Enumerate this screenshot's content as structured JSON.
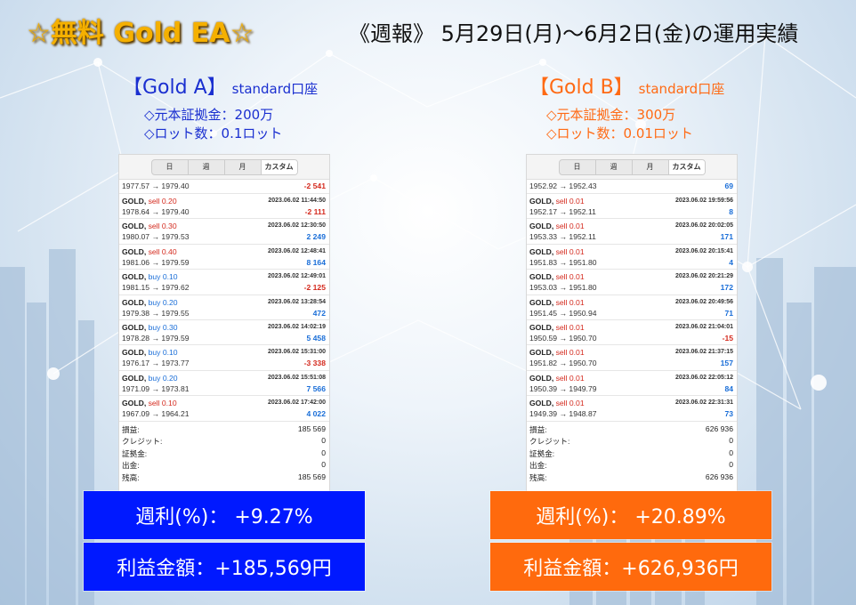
{
  "header": {
    "title": "☆無料 Gold EA☆",
    "subtitle": "《週報》 5月29日(月)～6月2日(金)の運用実績"
  },
  "colors": {
    "blue_accent": "#0019ff",
    "orange_accent": "#ff6a0d",
    "gold_title": "#f5b000",
    "profit": "#1a6ed8",
    "loss": "#d42a1e"
  },
  "tabs": [
    "日",
    "週",
    "月",
    "カスタム"
  ],
  "accounts": [
    {
      "name": "【Gold A】",
      "type": "standard口座",
      "info1": "◇元本証拠金：200万",
      "info2": "◇ロット数：0.1ロット",
      "first_row": {
        "price": "1977.57 → 1979.40",
        "profit": "-2 541",
        "sign": "neg"
      },
      "trades": [
        {
          "symbol": "GOLD, ",
          "side": "sell 0.20",
          "dir": "sell",
          "time": "2023.06.02 11:44:50",
          "price": "1978.64 → 1979.40",
          "profit": "-2 111",
          "sign": "neg"
        },
        {
          "symbol": "GOLD, ",
          "side": "sell 0.30",
          "dir": "sell",
          "time": "2023.06.02 12:30:50",
          "price": "1980.07 → 1979.53",
          "profit": "2 249",
          "sign": "pos"
        },
        {
          "symbol": "GOLD, ",
          "side": "sell 0.40",
          "dir": "sell",
          "time": "2023.06.02 12:48:41",
          "price": "1981.06 → 1979.59",
          "profit": "8 164",
          "sign": "pos"
        },
        {
          "symbol": "GOLD, ",
          "side": "buy 0.10",
          "dir": "buy",
          "time": "2023.06.02 12:49:01",
          "price": "1981.15 → 1979.62",
          "profit": "-2 125",
          "sign": "neg"
        },
        {
          "symbol": "GOLD, ",
          "side": "buy 0.20",
          "dir": "buy",
          "time": "2023.06.02 13:28:54",
          "price": "1979.38 → 1979.55",
          "profit": "472",
          "sign": "pos"
        },
        {
          "symbol": "GOLD, ",
          "side": "buy 0.30",
          "dir": "buy",
          "time": "2023.06.02 14:02:19",
          "price": "1978.28 → 1979.59",
          "profit": "5 458",
          "sign": "pos"
        },
        {
          "symbol": "GOLD, ",
          "side": "buy 0.10",
          "dir": "buy",
          "time": "2023.06.02 15:31:00",
          "price": "1976.17 → 1973.77",
          "profit": "-3 338",
          "sign": "neg"
        },
        {
          "symbol": "GOLD, ",
          "side": "buy 0.20",
          "dir": "buy",
          "time": "2023.06.02 15:51:08",
          "price": "1971.09 → 1973.81",
          "profit": "7 566",
          "sign": "pos"
        },
        {
          "symbol": "GOLD, ",
          "side": "sell 0.10",
          "dir": "sell",
          "time": "2023.06.02 17:42:00",
          "price": "1967.09 → 1964.21",
          "profit": "4 022",
          "sign": "pos"
        }
      ],
      "summary": [
        {
          "label": "損益:",
          "value": "185 569"
        },
        {
          "label": "クレジット:",
          "value": "0"
        },
        {
          "label": "証拠金:",
          "value": "0"
        },
        {
          "label": "出金:",
          "value": "0"
        },
        {
          "label": "残高:",
          "value": "185 569"
        }
      ],
      "weekly": "週利(%)：  +9.27%",
      "profit_amount": "利益金額：+185,569円"
    },
    {
      "name": "【Gold B】",
      "type": "standard口座",
      "info1": "◇元本証拠金：300万",
      "info2": "◇ロット数：0.01ロット",
      "first_row": {
        "price": "1952.92 → 1952.43",
        "profit": "69",
        "sign": "pos"
      },
      "trades": [
        {
          "symbol": "GOLD, ",
          "side": "sell 0.01",
          "dir": "sell",
          "time": "2023.06.02 19:59:56",
          "price": "1952.17 → 1952.11",
          "profit": "8",
          "sign": "pos"
        },
        {
          "symbol": "GOLD, ",
          "side": "sell 0.01",
          "dir": "sell",
          "time": "2023.06.02 20:02:05",
          "price": "1953.33 → 1952.11",
          "profit": "171",
          "sign": "pos"
        },
        {
          "symbol": "GOLD, ",
          "side": "sell 0.01",
          "dir": "sell",
          "time": "2023.06.02 20:15:41",
          "price": "1951.83 → 1951.80",
          "profit": "4",
          "sign": "pos"
        },
        {
          "symbol": "GOLD, ",
          "side": "sell 0.01",
          "dir": "sell",
          "time": "2023.06.02 20:21:29",
          "price": "1953.03 → 1951.80",
          "profit": "172",
          "sign": "pos"
        },
        {
          "symbol": "GOLD, ",
          "side": "sell 0.01",
          "dir": "sell",
          "time": "2023.06.02 20:49:56",
          "price": "1951.45 → 1950.94",
          "profit": "71",
          "sign": "pos"
        },
        {
          "symbol": "GOLD, ",
          "side": "sell 0.01",
          "dir": "sell",
          "time": "2023.06.02 21:04:01",
          "price": "1950.59 → 1950.70",
          "profit": "-15",
          "sign": "neg"
        },
        {
          "symbol": "GOLD, ",
          "side": "sell 0.01",
          "dir": "sell",
          "time": "2023.06.02 21:37:15",
          "price": "1951.82 → 1950.70",
          "profit": "157",
          "sign": "pos"
        },
        {
          "symbol": "GOLD, ",
          "side": "sell 0.01",
          "dir": "sell",
          "time": "2023.06.02 22:05:12",
          "price": "1950.39 → 1949.79",
          "profit": "84",
          "sign": "pos"
        },
        {
          "symbol": "GOLD, ",
          "side": "sell 0.01",
          "dir": "sell",
          "time": "2023.06.02 22:31:31",
          "price": "1949.39 → 1948.87",
          "profit": "73",
          "sign": "pos"
        }
      ],
      "summary": [
        {
          "label": "損益:",
          "value": "626 936"
        },
        {
          "label": "クレジット:",
          "value": "0"
        },
        {
          "label": "証拠金:",
          "value": "0"
        },
        {
          "label": "出金:",
          "value": "0"
        },
        {
          "label": "残高:",
          "value": "626 936"
        }
      ],
      "weekly": "週利(%)：  +20.89%",
      "profit_amount": "利益金額：+626,936円"
    }
  ]
}
